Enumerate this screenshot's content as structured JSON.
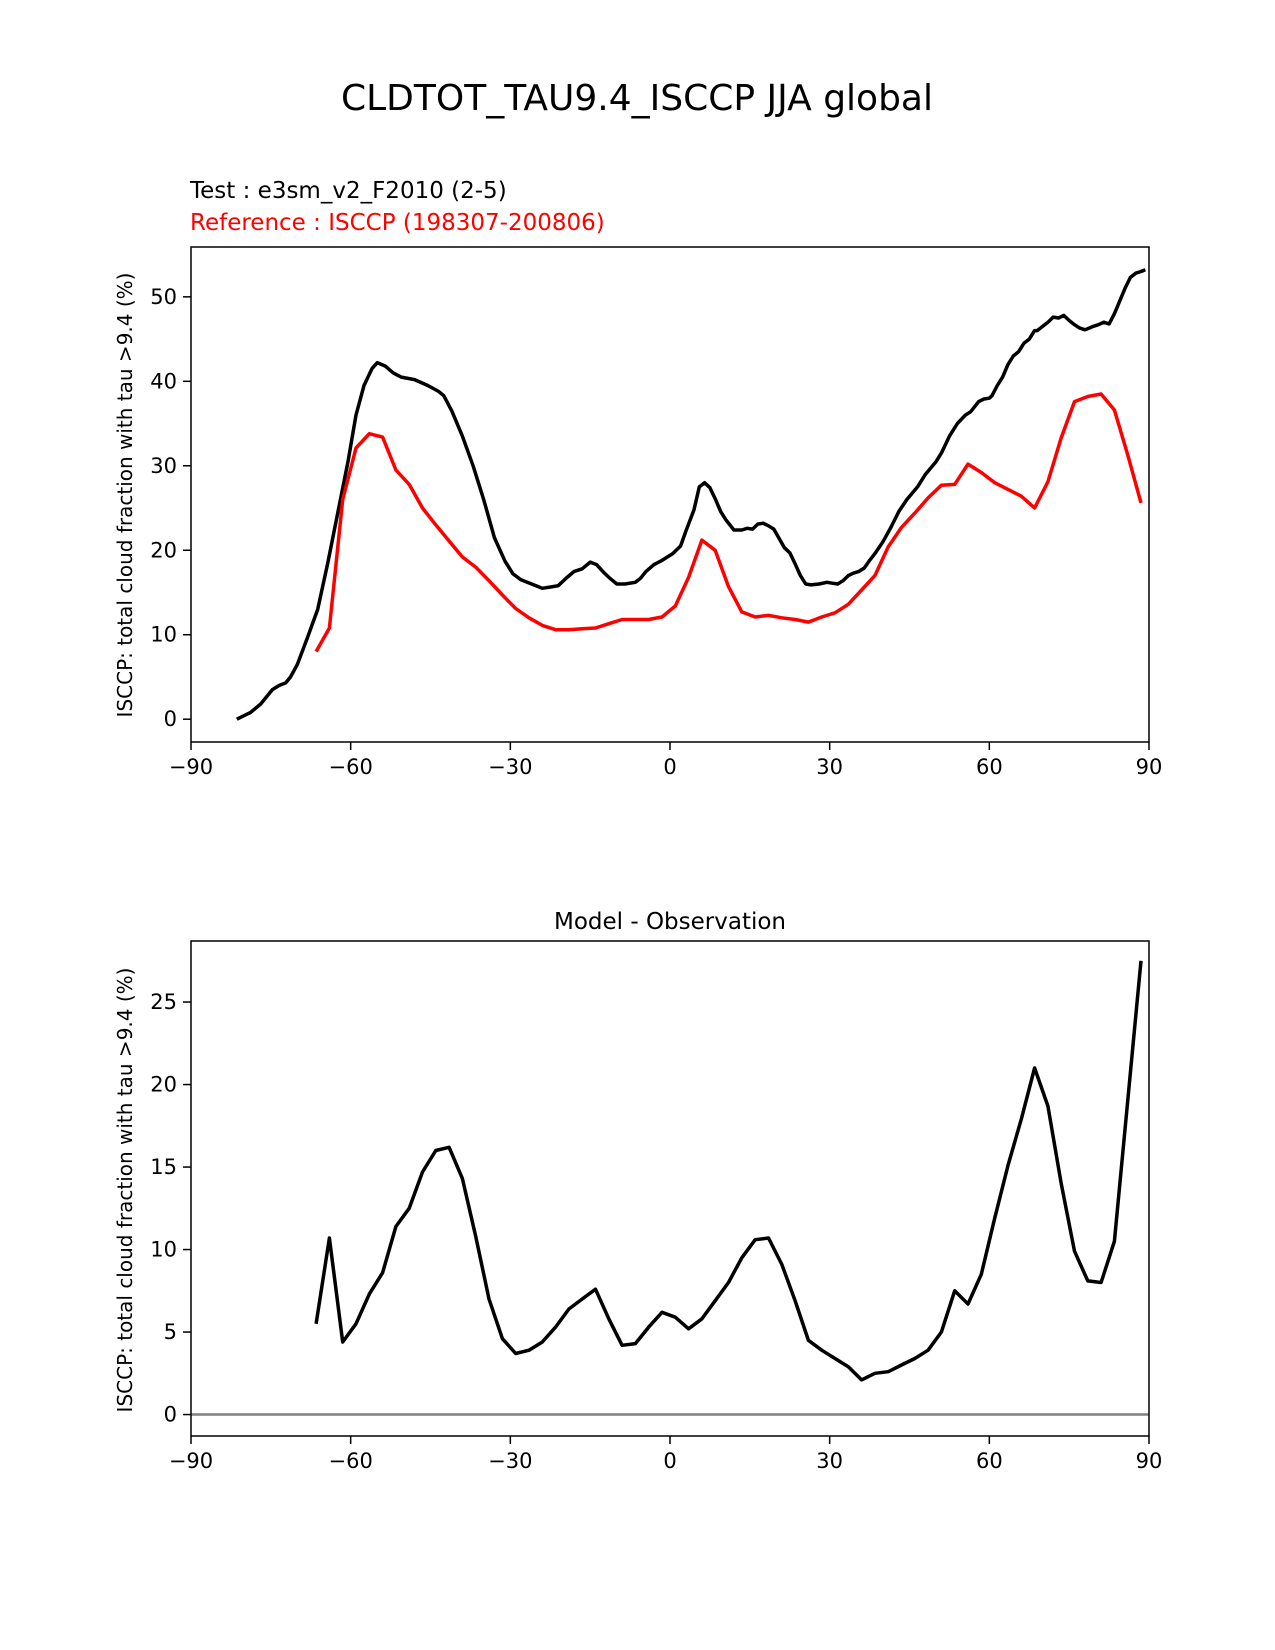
{
  "figure_title": "CLDTOT_TAU9.4_ISCCP JJA global",
  "colors": {
    "test": "#000000",
    "reference": "#ff0000",
    "zero_line": "#808080"
  },
  "chart_data": [
    {
      "type": "line",
      "test_label": "Test : e3sm_v2_F2010 (2-5)",
      "reference_label": "Reference : ISCCP (198307-200806)",
      "ylabel": "ISCCP: total cloud fraction with tau >9.4 (%)",
      "xlim": [
        -90,
        90
      ],
      "ylim": [
        -2.7,
        55.9
      ],
      "x_ticks": [
        -90,
        -60,
        -30,
        0,
        30,
        60,
        90
      ],
      "x_tick_labels": [
        "−90",
        "−60",
        "−30",
        "0",
        "30",
        "60",
        "90"
      ],
      "y_ticks": [
        0,
        10,
        20,
        30,
        40,
        50
      ],
      "y_tick_labels": [
        "0",
        "10",
        "20",
        "30",
        "40",
        "50"
      ],
      "series": [
        {
          "name": "Test : e3sm_v2_F2010 (2-5)",
          "color": "#000000",
          "x": [
            -81.4,
            -78.8,
            -76.9,
            -74.7,
            -73.4,
            -72.2,
            -71.3,
            -70.0,
            -68.2,
            -66.2,
            -64.3,
            -62.4,
            -60.5,
            -59.0,
            -57.5,
            -56.0,
            -55.0,
            -53.5,
            -52.0,
            -50.5,
            -48.0,
            -45.5,
            -43.5,
            -42.5,
            -41.0,
            -39.0,
            -37.0,
            -35.0,
            -33.0,
            -31.0,
            -29.5,
            -28.0,
            -26.0,
            -24.0,
            -22.0,
            -21.0,
            -19.5,
            -18.0,
            -16.5,
            -15.0,
            -13.8,
            -12.5,
            -11.5,
            -10.0,
            -8.5,
            -6.5,
            -5.5,
            -4.5,
            -3.0,
            -1.5,
            0.5,
            2.0,
            3.0,
            4.5,
            5.5,
            6.5,
            7.5,
            8.5,
            9.5,
            10.5,
            12.0,
            13.5,
            14.5,
            15.5,
            16.5,
            17.5,
            18.5,
            19.5,
            20.5,
            21.5,
            22.5,
            23.5,
            24.5,
            25.5,
            26.5,
            28.0,
            29.5,
            30.5,
            31.5,
            32.5,
            33.5,
            34.5,
            35.5,
            36.5,
            37.5,
            38.5,
            40.0,
            41.5,
            43.0,
            44.5,
            46.5,
            48.0,
            50.0,
            51.0,
            52.5,
            54.0,
            55.5,
            56.5,
            58.0,
            59.0,
            60.0,
            60.5,
            61.5,
            62.5,
            63.5,
            64.5,
            65.5,
            66.5,
            67.5,
            68.5,
            69.0,
            70.0,
            71.0,
            72.0,
            73.0,
            74.0,
            75.0,
            76.0,
            77.0,
            78.0,
            79.5,
            80.5,
            81.5,
            82.5,
            83.5,
            84.5,
            85.5,
            86.5,
            87.5,
            88.5,
            89.3
          ],
          "y": [
            0.0,
            0.8,
            1.8,
            3.5,
            4.0,
            4.3,
            5.0,
            6.5,
            9.5,
            13.0,
            18.5,
            24.5,
            30.5,
            36.0,
            39.5,
            41.5,
            42.2,
            41.8,
            41.0,
            40.5,
            40.2,
            39.5,
            38.8,
            38.3,
            36.5,
            33.5,
            30.0,
            26.0,
            21.5,
            18.7,
            17.2,
            16.5,
            16.0,
            15.5,
            15.7,
            15.8,
            16.7,
            17.5,
            17.8,
            18.6,
            18.3,
            17.4,
            16.8,
            16.0,
            16.0,
            16.2,
            16.7,
            17.5,
            18.3,
            18.8,
            19.6,
            20.5,
            22.3,
            24.8,
            27.5,
            28.0,
            27.4,
            26.1,
            24.6,
            23.6,
            22.4,
            22.4,
            22.6,
            22.5,
            23.1,
            23.2,
            22.9,
            22.5,
            21.4,
            20.3,
            19.7,
            18.4,
            17.0,
            16.0,
            15.9,
            16.0,
            16.2,
            16.1,
            16.0,
            16.4,
            17.0,
            17.3,
            17.5,
            17.9,
            18.8,
            19.6,
            21.0,
            22.7,
            24.6,
            26.0,
            27.5,
            29.0,
            30.5,
            31.5,
            33.5,
            35.0,
            36.0,
            36.4,
            37.6,
            37.9,
            38.0,
            38.3,
            39.5,
            40.5,
            42.0,
            43.0,
            43.5,
            44.5,
            45.0,
            46.0,
            46.0,
            46.5,
            47.0,
            47.6,
            47.5,
            47.8,
            47.2,
            46.7,
            46.3,
            46.1,
            46.5,
            46.7,
            47.0,
            46.8,
            48.0,
            49.5,
            51.0,
            52.3,
            52.8,
            53.0,
            53.2
          ]
        },
        {
          "name": "Reference : ISCCP (198307-200806)",
          "color": "#ff0000",
          "x": [
            -66.5,
            -64.0,
            -61.5,
            -59.0,
            -56.5,
            -54.0,
            -51.5,
            -49.0,
            -46.5,
            -44.0,
            -41.5,
            -39.0,
            -36.5,
            -34.0,
            -31.5,
            -29.0,
            -26.5,
            -24.0,
            -21.5,
            -19.0,
            -16.5,
            -14.0,
            -11.5,
            -9.0,
            -6.5,
            -4.0,
            -1.5,
            1.0,
            3.5,
            6.0,
            8.5,
            11.0,
            13.5,
            16.0,
            18.5,
            21.0,
            23.5,
            26.0,
            28.5,
            31.0,
            33.5,
            36.0,
            38.5,
            41.0,
            43.5,
            46.0,
            48.5,
            51.0,
            53.5,
            56.0,
            58.5,
            61.0,
            63.5,
            66.0,
            68.5,
            71.0,
            73.5,
            76.0,
            78.5,
            81.0,
            83.5,
            86.0,
            88.5
          ],
          "y": [
            8.0,
            10.8,
            26.0,
            32.1,
            33.8,
            33.4,
            29.5,
            27.8,
            25.0,
            23.0,
            21.1,
            19.2,
            18.0,
            16.4,
            14.7,
            13.1,
            12.0,
            11.1,
            10.6,
            10.6,
            10.7,
            10.8,
            11.3,
            11.8,
            11.8,
            11.8,
            12.1,
            13.4,
            16.8,
            21.2,
            20.0,
            15.7,
            12.7,
            12.1,
            12.3,
            12.0,
            11.8,
            11.5,
            12.1,
            12.6,
            13.6,
            15.3,
            17.0,
            20.4,
            22.7,
            24.4,
            26.2,
            27.7,
            27.8,
            30.2,
            29.2,
            28.0,
            27.2,
            26.4,
            25.0,
            28.1,
            33.3,
            37.6,
            38.2,
            38.5,
            36.6,
            31.3,
            25.6
          ]
        }
      ]
    },
    {
      "type": "line",
      "title": "Model - Observation",
      "ylabel": "ISCCP: total cloud fraction with tau >9.4 (%)",
      "xlim": [
        -90,
        90
      ],
      "ylim": [
        -1.3,
        28.7
      ],
      "x_ticks": [
        -90,
        -60,
        -30,
        0,
        30,
        60,
        90
      ],
      "x_tick_labels": [
        "−90",
        "−60",
        "−30",
        "0",
        "30",
        "60",
        "90"
      ],
      "y_ticks": [
        0,
        5,
        10,
        15,
        20,
        25
      ],
      "y_tick_labels": [
        "0",
        "5",
        "10",
        "15",
        "20",
        "25"
      ],
      "hline": 0,
      "series": [
        {
          "name": "Model - Observation",
          "color": "#000000",
          "x": [
            -66.5,
            -64.0,
            -61.5,
            -59.0,
            -56.5,
            -54.0,
            -51.5,
            -49.0,
            -46.5,
            -44.0,
            -41.5,
            -39.0,
            -36.5,
            -34.0,
            -31.5,
            -29.0,
            -26.5,
            -24.0,
            -21.5,
            -19.0,
            -16.5,
            -14.0,
            -11.5,
            -9.0,
            -6.5,
            -4.0,
            -1.5,
            1.0,
            3.5,
            6.0,
            8.5,
            11.0,
            13.5,
            16.0,
            18.5,
            21.0,
            23.5,
            26.0,
            28.5,
            31.0,
            33.5,
            36.0,
            38.5,
            41.0,
            43.5,
            46.0,
            48.5,
            51.0,
            53.5,
            56.0,
            58.5,
            61.0,
            63.5,
            66.0,
            68.5,
            71.0,
            73.5,
            76.0,
            78.5,
            81.0,
            83.5,
            86.0,
            88.5
          ],
          "y": [
            5.5,
            10.7,
            4.4,
            5.5,
            7.3,
            8.6,
            11.4,
            12.5,
            14.7,
            16.0,
            16.2,
            14.3,
            10.8,
            7.0,
            4.6,
            3.7,
            3.9,
            4.4,
            5.3,
            6.4,
            7.0,
            7.6,
            5.8,
            4.2,
            4.3,
            5.3,
            6.2,
            5.9,
            5.2,
            5.8,
            6.9,
            8.0,
            9.5,
            10.6,
            10.7,
            9.1,
            6.9,
            4.5,
            3.9,
            3.4,
            2.9,
            2.1,
            2.5,
            2.6,
            3.0,
            3.4,
            3.9,
            5.0,
            7.5,
            6.7,
            8.5,
            11.9,
            15.1,
            17.9,
            21.0,
            18.7,
            14.0,
            9.9,
            8.1,
            8.0,
            10.5,
            19.0,
            27.5
          ]
        }
      ]
    }
  ]
}
